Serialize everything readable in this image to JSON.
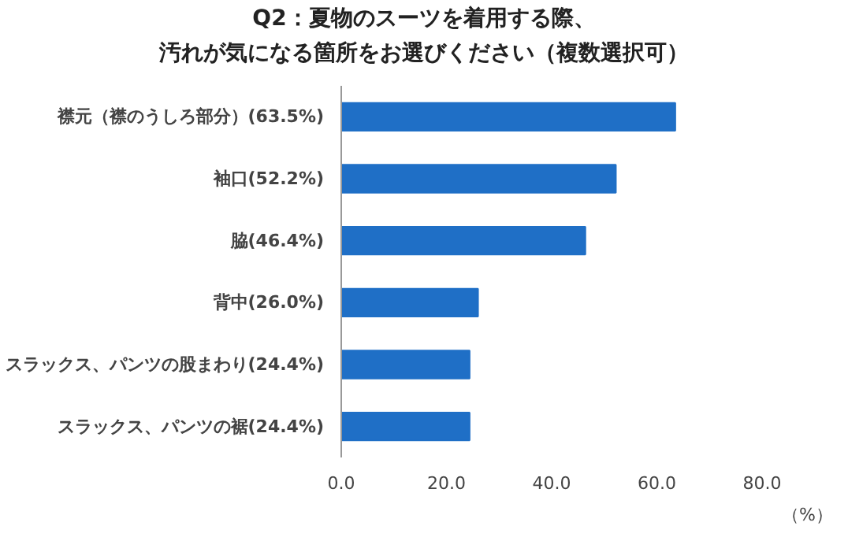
{
  "chart_data": {
    "type": "bar",
    "orientation": "horizontal",
    "title": "Q2：夏物のスーツを着用する際、",
    "subtitle": "汚れが気になる箇所をお選びください（複数選択可）",
    "xlabel": "（%）",
    "categories": [
      "襟元（襟のうしろ部分）(63.5%)",
      "袖口(52.2%)",
      "脇(46.4%)",
      "背中(26.0%)",
      "スラックス、パンツの股まわり(24.4%)",
      "スラックス、パンツの裾(24.4%)"
    ],
    "values": [
      63.5,
      52.2,
      46.4,
      26.0,
      24.4,
      24.4
    ],
    "color": "#1f6fc6",
    "xlim": [
      0,
      80
    ],
    "xticks": [
      {
        "value": 0,
        "label": "0.0"
      },
      {
        "value": 20,
        "label": "20.0"
      },
      {
        "value": 40,
        "label": "40.0"
      },
      {
        "value": 60,
        "label": "60.0"
      },
      {
        "value": 80,
        "label": "80.0"
      }
    ],
    "grid": false
  }
}
